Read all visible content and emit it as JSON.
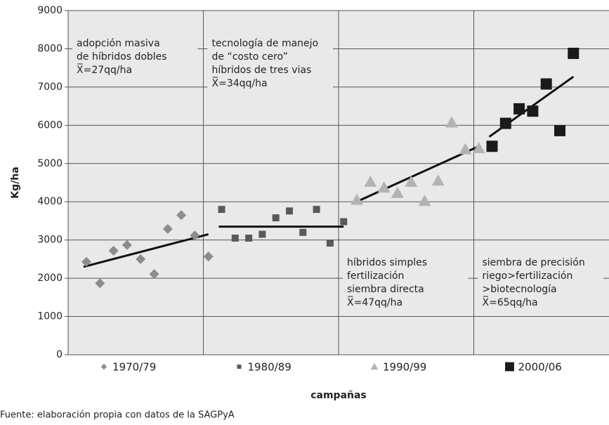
{
  "chart_data": {
    "type": "scatter",
    "ylabel": "Kg/ha",
    "xlabel": "campañas",
    "source": "Fuente: elaboración propia con datos de la SAGPyA",
    "ylim": [
      0,
      9000
    ],
    "yticks": [
      0,
      1000,
      2000,
      3000,
      4000,
      5000,
      6000,
      7000,
      8000,
      9000
    ],
    "grid": true,
    "series": [
      {
        "name": "1970/79",
        "color": "#8c8c8c",
        "marker": "diamond",
        "values": [
          2430,
          1870,
          2720,
          2870,
          2500,
          2110,
          3290,
          3650,
          3120,
          2570
        ],
        "trend": [
          2300,
          3150
        ],
        "annotation": [
          "adopción masiva",
          "de híbridos dobles",
          "X̅=27qq/ha"
        ]
      },
      {
        "name": "1980/89",
        "color": "#595959",
        "marker": "square",
        "values": [
          3800,
          3050,
          3050,
          3150,
          3580,
          3760,
          3200,
          3800,
          2920,
          3480
        ],
        "trend": [
          3350,
          3350
        ],
        "annotation": [
          "tecnología de manejo",
          "de “costo cero”",
          "híbridos de tres vias",
          "X̅=34qq/ha"
        ]
      },
      {
        "name": "1990/99",
        "color": "#b3b3b3",
        "marker": "triangle",
        "values": [
          4050,
          4520,
          4370,
          4230,
          4520,
          4020,
          4550,
          6070,
          5370,
          5400
        ],
        "trend": [
          3970,
          5450
        ],
        "annotation": [
          "híbridos simples",
          "fertilización",
          "siembra directa",
          "X̅=47qq/ha"
        ]
      },
      {
        "name": "2000/06",
        "color": "#1a1a1a",
        "marker": "bigsquare",
        "values": [
          5450,
          6050,
          6430,
          6370,
          7080,
          5860,
          7880
        ],
        "trend": [
          5700,
          7270
        ],
        "annotation": [
          "siembra de precisión",
          "riego>fertilización",
          ">biotecnología",
          "X̅=65qq/ha"
        ]
      }
    ]
  }
}
